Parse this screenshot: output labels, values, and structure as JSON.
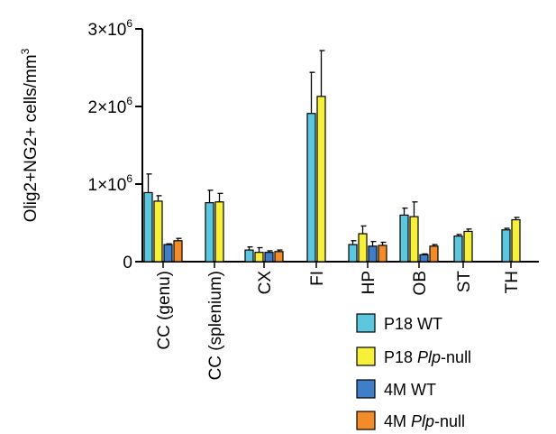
{
  "chart_data": {
    "type": "bar",
    "ylabel": "Olig2+NG2+ cells/mm",
    "ylabel_superscript": "3",
    "ylim": [
      0,
      3000000
    ],
    "yticks": [
      {
        "value": 0,
        "base": "0",
        "exp": ""
      },
      {
        "value": 1000000,
        "base": "1×10",
        "exp": "6"
      },
      {
        "value": 2000000,
        "base": "2×10",
        "exp": "6"
      },
      {
        "value": 3000000,
        "base": "3×10",
        "exp": "6"
      }
    ],
    "categories": [
      "CC (genu)",
      "CC (splenium)",
      "CX",
      "FI",
      "HP",
      "OB",
      "ST",
      "TH"
    ],
    "series": [
      {
        "label_main": "P18 WT",
        "label_italic": "",
        "label_suffix": "",
        "color": "#5BC8E0",
        "values": [
          890000,
          760000,
          150000,
          1910000,
          220000,
          600000,
          330000,
          410000
        ],
        "errors": [
          240000,
          160000,
          40000,
          530000,
          50000,
          90000,
          20000,
          20000
        ]
      },
      {
        "label_main": "P18 ",
        "label_italic": "Plp",
        "label_suffix": "-null",
        "color": "#F7F03A",
        "values": [
          780000,
          770000,
          120000,
          2130000,
          360000,
          580000,
          390000,
          540000
        ],
        "errors": [
          70000,
          110000,
          60000,
          590000,
          100000,
          190000,
          30000,
          30000
        ]
      },
      {
        "label_main": "4M WT",
        "label_italic": "",
        "label_suffix": "",
        "color": "#3F7FC8",
        "values": [
          220000,
          null,
          120000,
          null,
          200000,
          90000,
          null,
          null
        ],
        "errors": [
          10000,
          null,
          20000,
          null,
          60000,
          10000,
          null,
          null
        ]
      },
      {
        "label_main": "4M ",
        "label_italic": "Plp",
        "label_suffix": "-null",
        "color": "#F28C28",
        "values": [
          270000,
          null,
          130000,
          null,
          210000,
          200000,
          null,
          null
        ],
        "errors": [
          30000,
          null,
          20000,
          null,
          40000,
          20000,
          null,
          null
        ]
      }
    ]
  }
}
